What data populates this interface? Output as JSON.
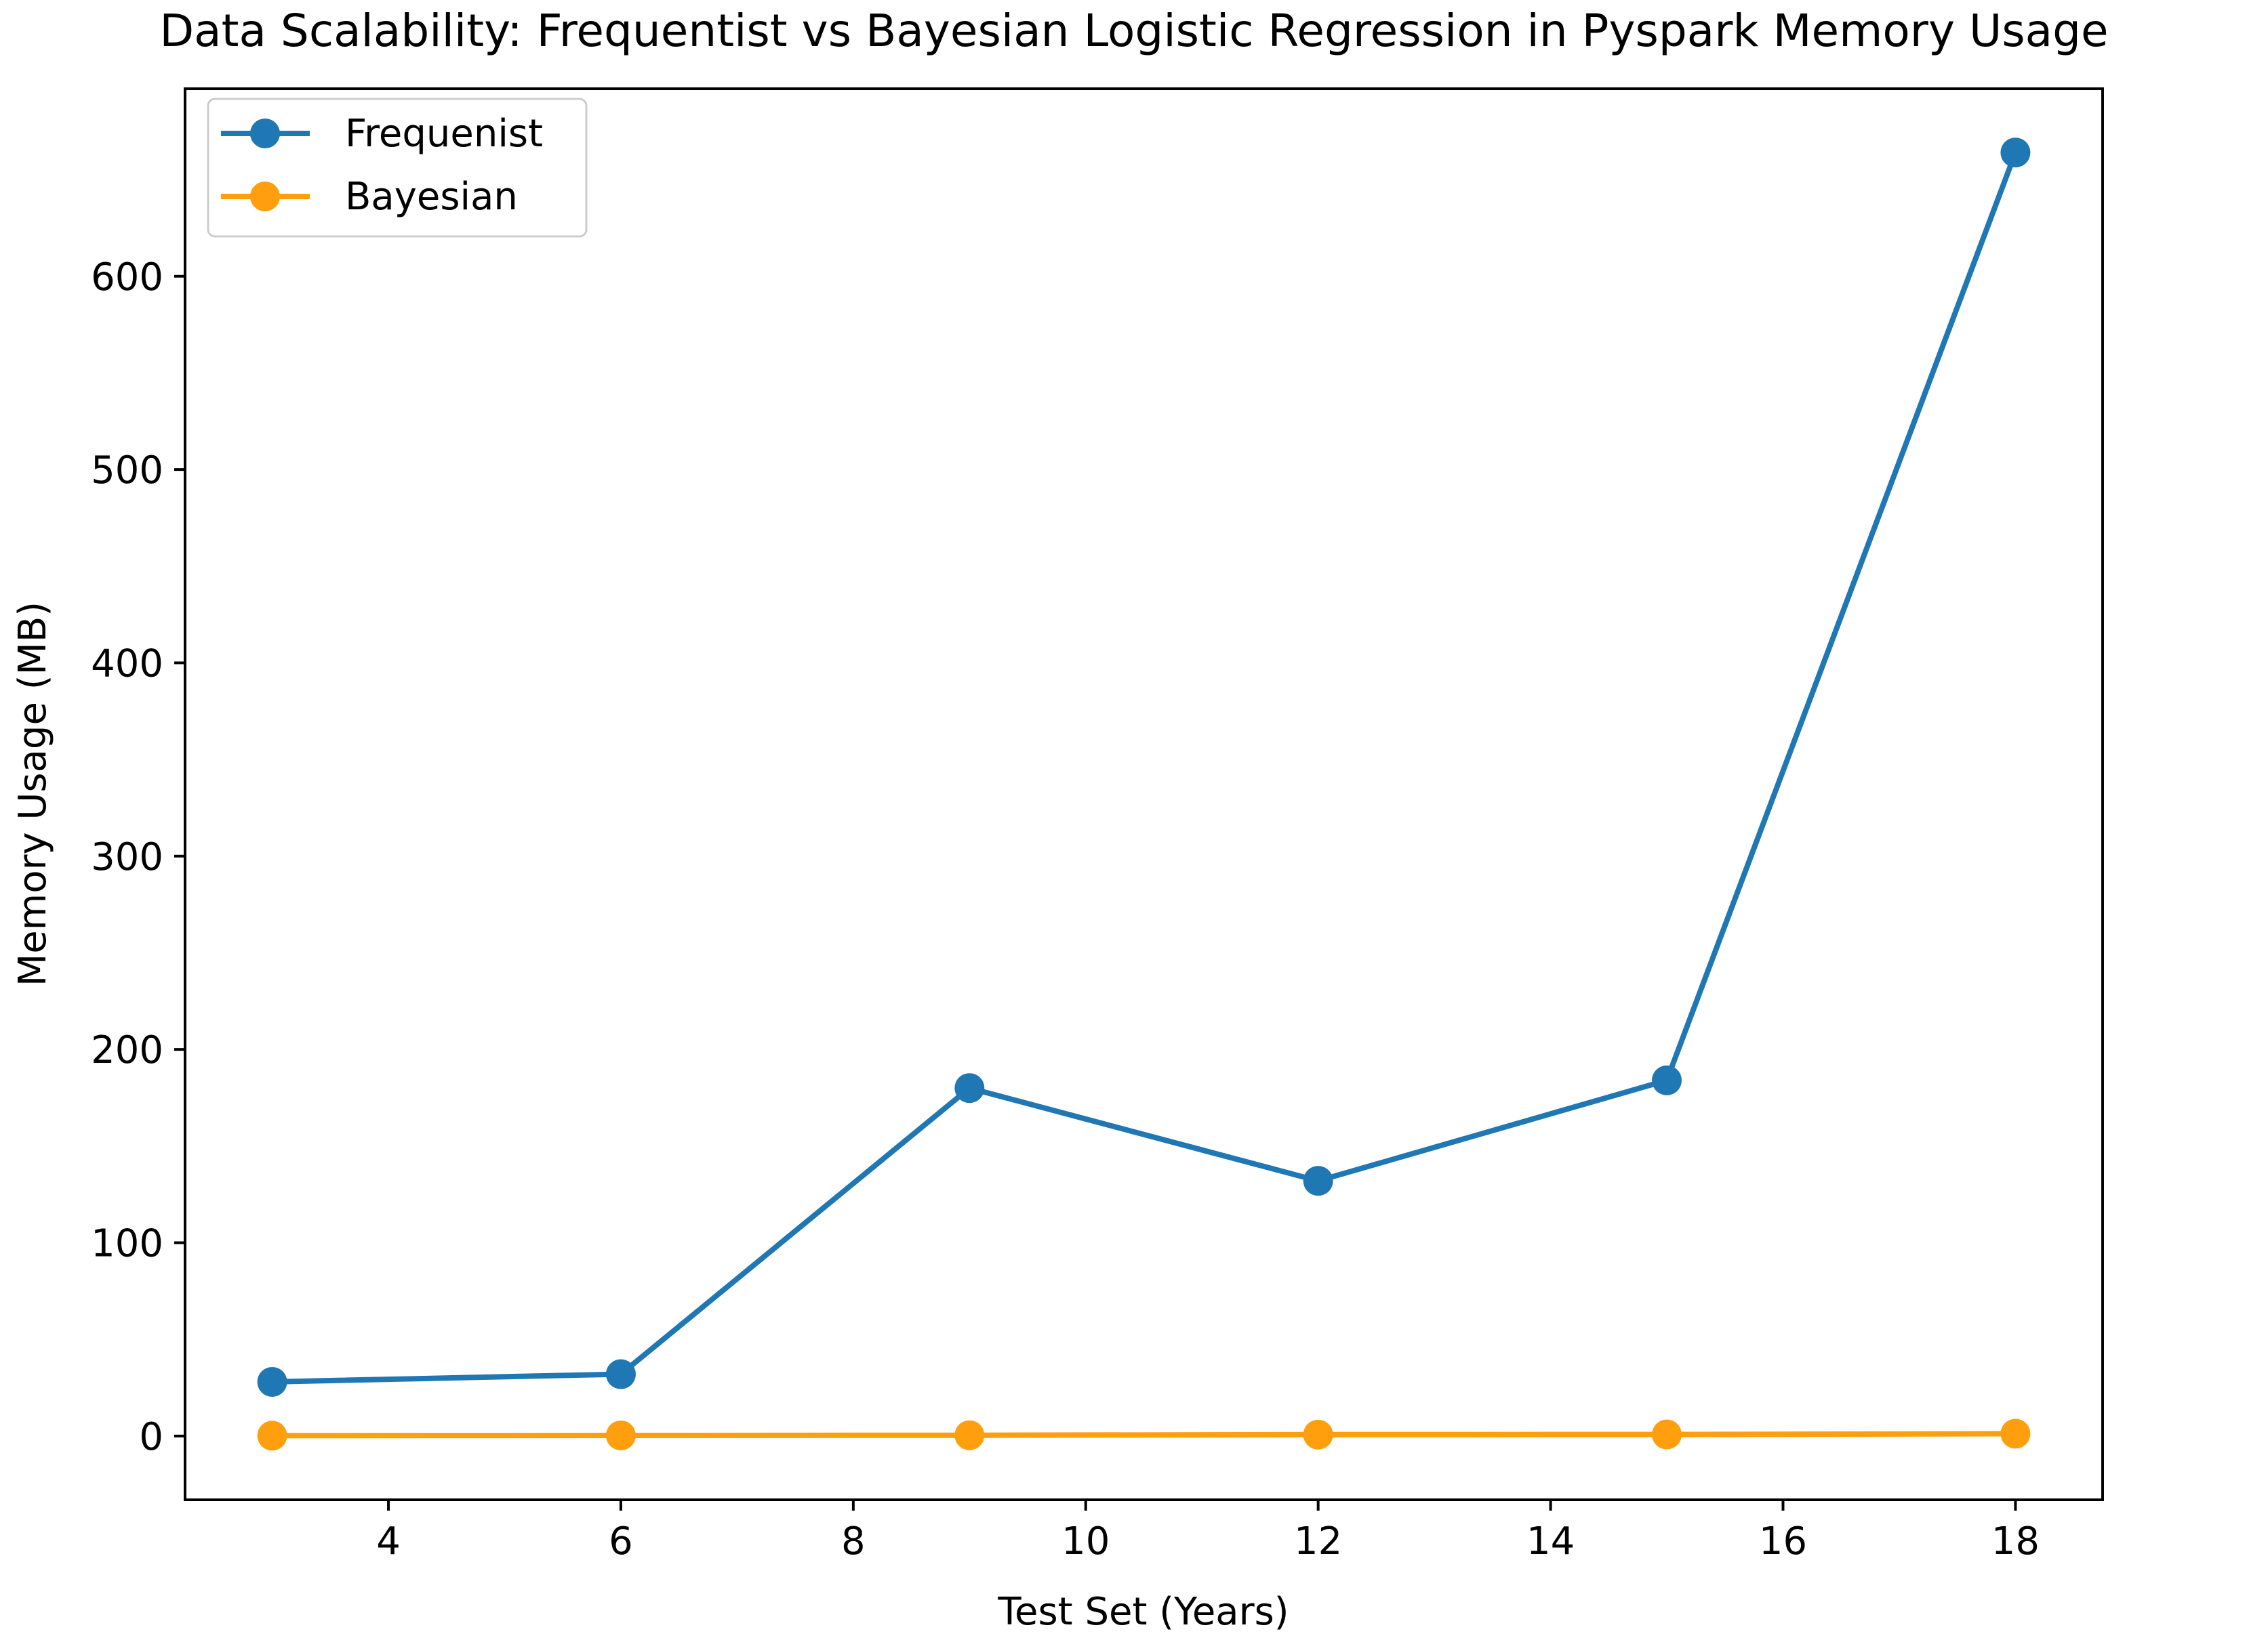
{
  "chart_data": {
    "type": "line",
    "title": "Data Scalability: Frequentist vs Bayesian Logistic Regression in Pyspark Memory Usage",
    "xlabel": "Test Set (Years)",
    "ylabel": "Memory Usage (MB)",
    "x": [
      3,
      6,
      9,
      12,
      15,
      18
    ],
    "xlim": [
      2.25,
      18.75
    ],
    "ylim": [
      -33,
      697
    ],
    "xticks": [
      4,
      6,
      8,
      10,
      12,
      14,
      16,
      18
    ],
    "yticks": [
      0,
      100,
      200,
      300,
      400,
      500,
      600
    ],
    "grid": false,
    "legend_position": "top-left",
    "series": [
      {
        "name": "Frequenist",
        "color": "#1f77b4",
        "marker": "circle",
        "values": [
          28,
          32,
          180,
          132,
          184,
          664
        ]
      },
      {
        "name": "Bayesian",
        "color": "#ff9f0e",
        "marker": "circle",
        "values": [
          0.2,
          0.3,
          0.4,
          0.7,
          0.8,
          1.2
        ]
      }
    ]
  }
}
